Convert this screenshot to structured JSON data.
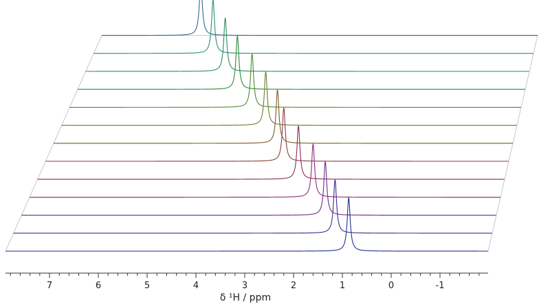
{
  "chart_data": {
    "type": "line",
    "title": "",
    "xlabel": "δ ¹H / ppm",
    "ylabel": "",
    "x_reversed": true,
    "xlim": [
      7.95,
      -2.0
    ],
    "x_ticks": [
      7,
      6,
      5,
      4,
      3,
      2,
      1,
      0,
      -1
    ],
    "x_tick_labels": [
      "7",
      "6",
      "5",
      "4",
      "3",
      "2",
      "1",
      "0",
      "-1"
    ],
    "grid": false,
    "legend": "none",
    "series": [
      {
        "peak_ppm": 0.87,
        "color": "#1f2e8c"
      },
      {
        "peak_ppm": 1.15,
        "color": "#3a2a8a"
      },
      {
        "peak_ppm": 1.35,
        "color": "#6a2a8a"
      },
      {
        "peak_ppm": 1.6,
        "color": "#8a2a7a"
      },
      {
        "peak_ppm": 1.9,
        "color": "#8a2a55"
      },
      {
        "peak_ppm": 2.2,
        "color": "#8a3a3a"
      },
      {
        "peak_ppm": 2.33,
        "color": "#7a5a2a"
      },
      {
        "peak_ppm": 2.57,
        "color": "#6a7a2a"
      },
      {
        "peak_ppm": 2.85,
        "color": "#4a8a2a"
      },
      {
        "peak_ppm": 3.15,
        "color": "#2a8a3a"
      },
      {
        "peak_ppm": 3.4,
        "color": "#2a8a5a"
      },
      {
        "peak_ppm": 3.65,
        "color": "#2a8a7a"
      },
      {
        "peak_ppm": 3.9,
        "color": "#2a6a8a"
      }
    ]
  }
}
